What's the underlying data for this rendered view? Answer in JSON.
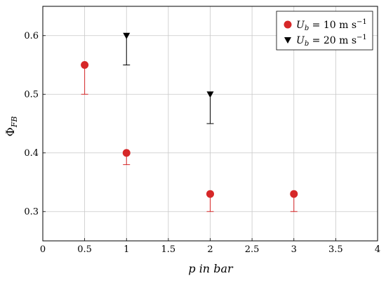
{
  "chart_data": {
    "type": "scatter",
    "xlabel": "p in bar",
    "ylabel": "Φ_FB",
    "xlim": [
      0,
      4
    ],
    "ylim": [
      0.25,
      0.65
    ],
    "xticks": [
      "0",
      "0.5",
      "1",
      "1.5",
      "2",
      "2.5",
      "3",
      "3.5",
      "4"
    ],
    "yticks": [
      "0.3",
      "0.4",
      "0.5",
      "0.6"
    ],
    "grid": true,
    "legend_position": "top-right",
    "series": [
      {
        "name": "U_b = 10 m s^-1",
        "legend_main": "U",
        "legend_sub": "b",
        "legend_rest": " = 10 m s",
        "legend_sup": "−1",
        "marker": "circle",
        "color": "#d62728",
        "points": [
          {
            "x": 0.5,
            "y": 0.55,
            "err_low": 0.5
          },
          {
            "x": 1,
            "y": 0.4,
            "err_low": 0.38
          },
          {
            "x": 2,
            "y": 0.33,
            "err_low": 0.3
          },
          {
            "x": 3,
            "y": 0.33,
            "err_low": 0.3
          }
        ]
      },
      {
        "name": "U_b = 20 m s^-1",
        "legend_main": "U",
        "legend_sub": "b",
        "legend_rest": " = 20 m s",
        "legend_sup": "−1",
        "marker": "triangle-down",
        "color": "#000000",
        "points": [
          {
            "x": 1,
            "y": 0.6,
            "err_low": 0.55
          },
          {
            "x": 2,
            "y": 0.5,
            "err_low": 0.45
          }
        ]
      }
    ]
  }
}
